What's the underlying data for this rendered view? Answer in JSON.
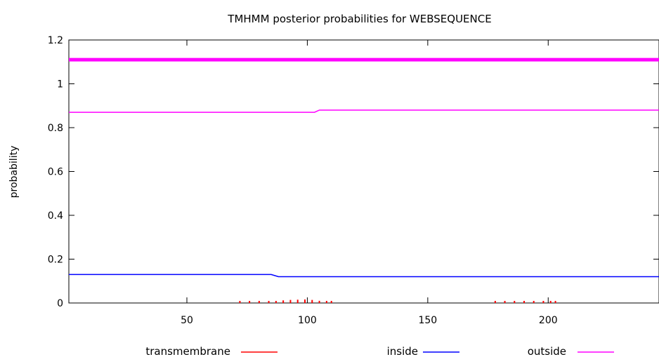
{
  "chart_data": {
    "type": "line",
    "title": "TMHMM posterior probabilities for WEBSEQUENCE",
    "xlabel": "",
    "ylabel": "probability",
    "xlim": [
      1,
      246
    ],
    "ylim": [
      0,
      1.2
    ],
    "x_ticks": [
      50,
      100,
      150,
      200
    ],
    "y_ticks": [
      0,
      0.2,
      0.4,
      0.6,
      0.8,
      1,
      1.2
    ],
    "y_tick_labels": [
      "0",
      "0.2",
      "0.4",
      "0.6",
      "0.8",
      "1",
      "1.2"
    ],
    "grid": false,
    "legend": "bottom",
    "series": [
      {
        "name": "transmembrane",
        "color": "#ff0000",
        "style": "impulses",
        "points": [
          [
            72,
            0.002
          ],
          [
            76,
            0.002
          ],
          [
            80,
            0.003
          ],
          [
            84,
            0.004
          ],
          [
            87,
            0.008
          ],
          [
            90,
            0.012
          ],
          [
            93,
            0.014
          ],
          [
            96,
            0.015
          ],
          [
            99,
            0.016
          ],
          [
            102,
            0.014
          ],
          [
            105,
            0.01
          ],
          [
            108,
            0.005
          ],
          [
            110,
            0.003
          ],
          [
            178,
            0.002
          ],
          [
            182,
            0.003
          ],
          [
            186,
            0.003
          ],
          [
            190,
            0.004
          ],
          [
            194,
            0.004
          ],
          [
            198,
            0.004
          ],
          [
            201,
            0.003
          ],
          [
            203,
            0.002
          ]
        ]
      },
      {
        "name": "inside",
        "color": "#0000ff",
        "style": "line",
        "points": [
          [
            1,
            0.13
          ],
          [
            85,
            0.13
          ],
          [
            88,
            0.12
          ],
          [
            246,
            0.12
          ]
        ]
      },
      {
        "name": "outside",
        "color": "#ff00ff",
        "style": "line",
        "points": [
          [
            1,
            0.87
          ],
          [
            103,
            0.87
          ],
          [
            105,
            0.88
          ],
          [
            246,
            0.88
          ]
        ]
      },
      {
        "name": "",
        "color": "#ff00ff",
        "style": "thick-line",
        "points": [
          [
            1,
            1.11
          ],
          [
            246,
            1.11
          ]
        ]
      }
    ]
  }
}
